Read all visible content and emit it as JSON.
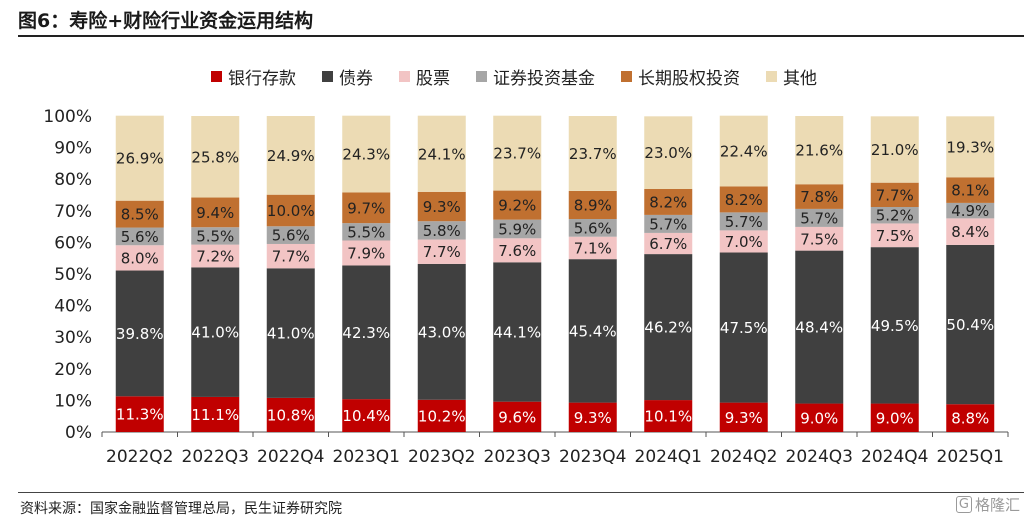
{
  "title": "图6：寿险+财险行业资金运用结构",
  "source": "资料来源：国家金融监督管理总局，民生证券研究院",
  "watermark": "格隆汇",
  "chart_data": {
    "type": "bar",
    "stacked": true,
    "categories": [
      "2022Q2",
      "2022Q3",
      "2022Q4",
      "2023Q1",
      "2023Q2",
      "2023Q3",
      "2023Q4",
      "2024Q1",
      "2024Q2",
      "2024Q3",
      "2024Q4",
      "2025Q1"
    ],
    "ylim": [
      0,
      100
    ],
    "yticks": [
      "0%",
      "10%",
      "20%",
      "30%",
      "40%",
      "50%",
      "60%",
      "70%",
      "80%",
      "90%",
      "100%"
    ],
    "legend_position": "top",
    "series": [
      {
        "name": "银行存款",
        "color": "#c00000",
        "label_color": "#ffffff",
        "values": [
          11.3,
          11.1,
          10.8,
          10.4,
          10.2,
          9.6,
          9.3,
          10.1,
          9.3,
          9.0,
          9.0,
          8.8
        ]
      },
      {
        "name": "债券",
        "color": "#404040",
        "label_color": "#ffffff",
        "values": [
          39.8,
          41.0,
          41.0,
          42.3,
          43.0,
          44.1,
          45.4,
          46.2,
          47.5,
          48.4,
          49.5,
          50.4
        ]
      },
      {
        "name": "股票",
        "color": "#f2c4c4",
        "label_color": "#222222",
        "values": [
          8.0,
          7.2,
          7.7,
          7.9,
          7.7,
          7.6,
          7.1,
          6.7,
          7.0,
          7.5,
          7.5,
          8.4
        ]
      },
      {
        "name": "证券投资基金",
        "color": "#a6a6a6",
        "label_color": "#222222",
        "values": [
          5.6,
          5.5,
          5.6,
          5.5,
          5.8,
          5.9,
          5.6,
          5.7,
          5.7,
          5.7,
          5.2,
          4.9
        ]
      },
      {
        "name": "长期股权投资",
        "color": "#c07030",
        "label_color": "#222222",
        "values": [
          8.5,
          9.4,
          10.0,
          9.7,
          9.3,
          9.2,
          8.9,
          8.2,
          8.2,
          7.8,
          7.7,
          8.1
        ]
      },
      {
        "name": "其他",
        "color": "#ecdbb4",
        "label_color": "#222222",
        "values": [
          26.9,
          25.8,
          24.9,
          24.3,
          24.1,
          23.7,
          23.7,
          23.0,
          22.4,
          21.6,
          21.0,
          19.3
        ]
      }
    ]
  }
}
